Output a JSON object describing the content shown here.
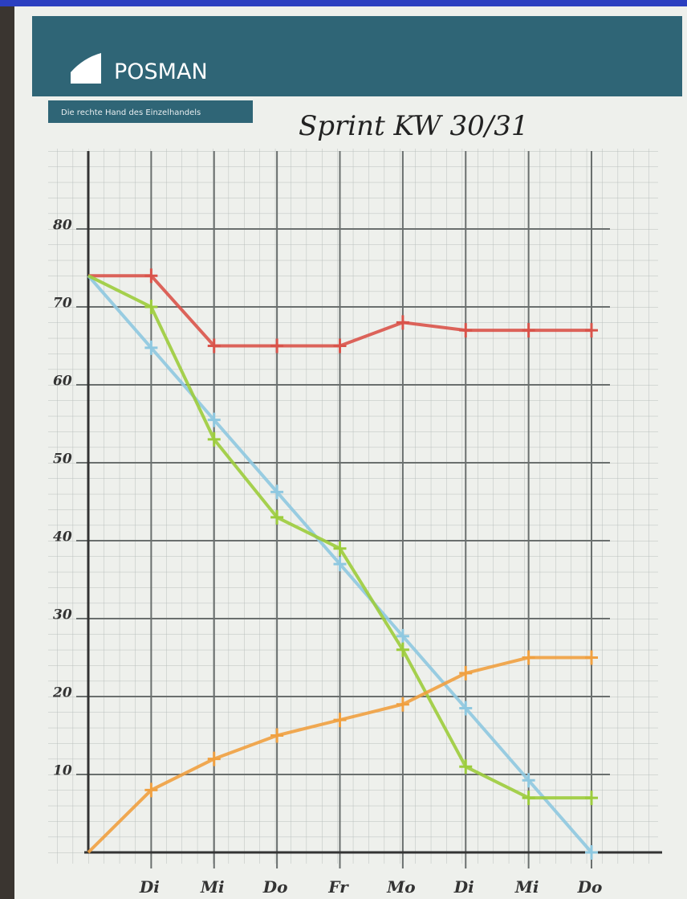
{
  "header": {
    "brand": "POSMAN",
    "tagline": "Die rechte Hand des Einzelhandels"
  },
  "chart_data": {
    "type": "line",
    "title": "Sprint KW 30/31",
    "categories": [
      null,
      "Di",
      "Mi",
      "Do",
      "Fr",
      "Mo",
      "Di",
      "Mi",
      "Do"
    ],
    "series": [
      {
        "color": "#d9534a",
        "values": [
          74,
          74,
          65,
          65,
          65,
          68,
          67,
          67,
          67
        ]
      },
      {
        "color": "#8ec8e0",
        "values": [
          74,
          64.75,
          55.5,
          46.25,
          37,
          27.75,
          18.5,
          9.25,
          0
        ]
      },
      {
        "color": "#9ccc3c",
        "values": [
          74,
          70,
          53,
          43,
          39,
          26,
          11,
          7,
          7
        ]
      },
      {
        "color": "#f0a040",
        "values": [
          0,
          8,
          12,
          15,
          17,
          19,
          23,
          25,
          25
        ]
      }
    ],
    "ylim": [
      0,
      90
    ],
    "yticks": [
      10,
      20,
      30,
      40,
      50,
      60,
      70,
      80
    ],
    "grid": true
  }
}
